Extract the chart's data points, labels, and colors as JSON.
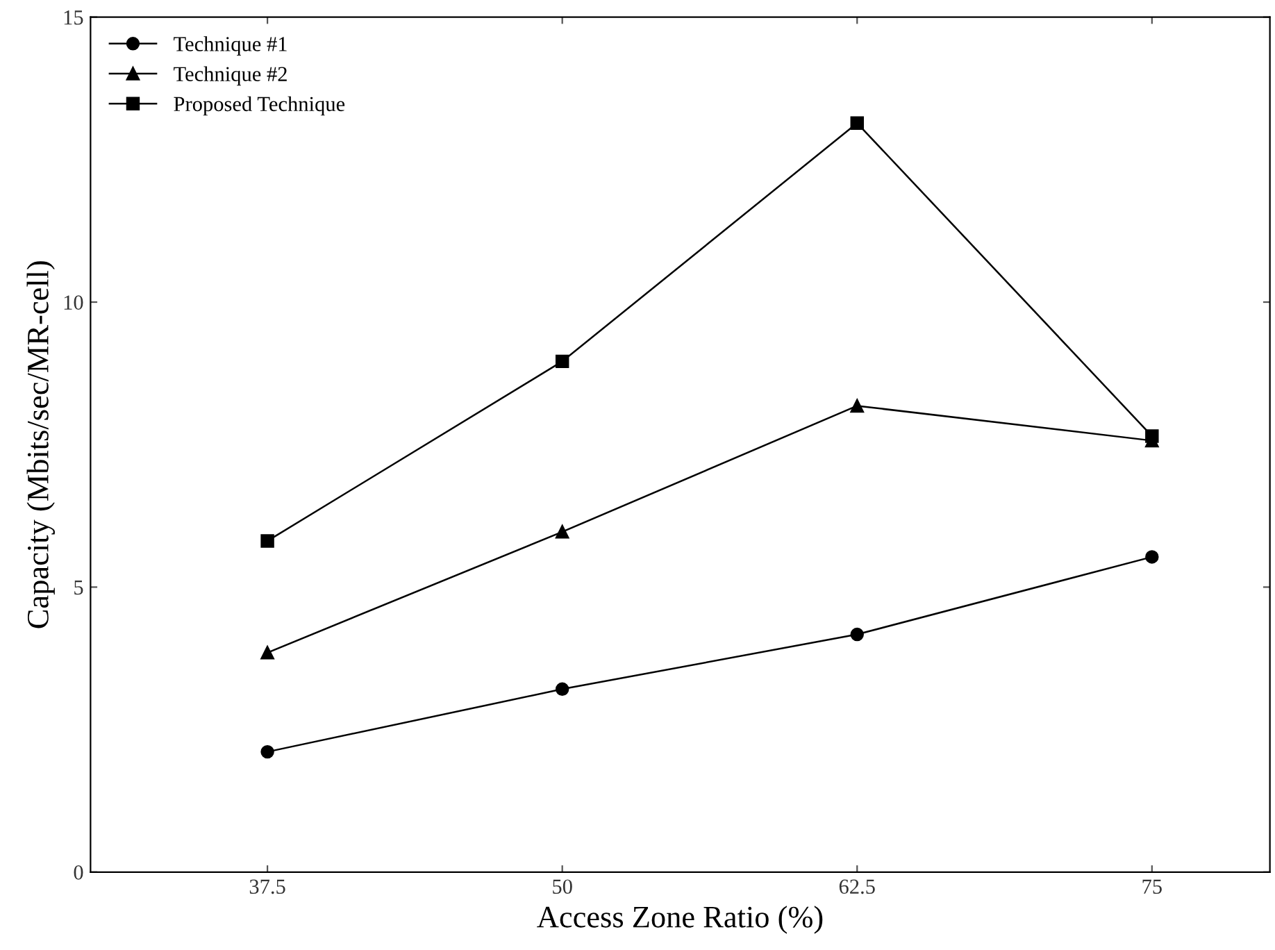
{
  "chart_data": {
    "type": "line",
    "xlabel": "Access Zone Ratio (%)",
    "ylabel": "Capacity (Mbits/sec/MR-cell)",
    "x": [
      37.5,
      50,
      62.5,
      75
    ],
    "series": [
      {
        "name": "Technique #1",
        "color": "#000000",
        "marker": "circle",
        "values": [
          2.11,
          3.21,
          4.17,
          5.53
        ]
      },
      {
        "name": "Technique #2",
        "color": "#000000",
        "marker": "triangle",
        "values": [
          3.85,
          5.97,
          8.18,
          7.57
        ]
      },
      {
        "name": "Proposed Technique",
        "color": "#000000",
        "marker": "square",
        "values": [
          5.81,
          8.96,
          13.14,
          7.65
        ]
      }
    ],
    "xlim": [
      30,
      80
    ],
    "xticks": [
      37.5,
      50,
      62.5,
      75
    ],
    "ylim": [
      0,
      15
    ],
    "yticks": [
      0,
      5,
      10,
      15
    ],
    "grid": false,
    "legend": "top left",
    "line_style": "solid"
  }
}
